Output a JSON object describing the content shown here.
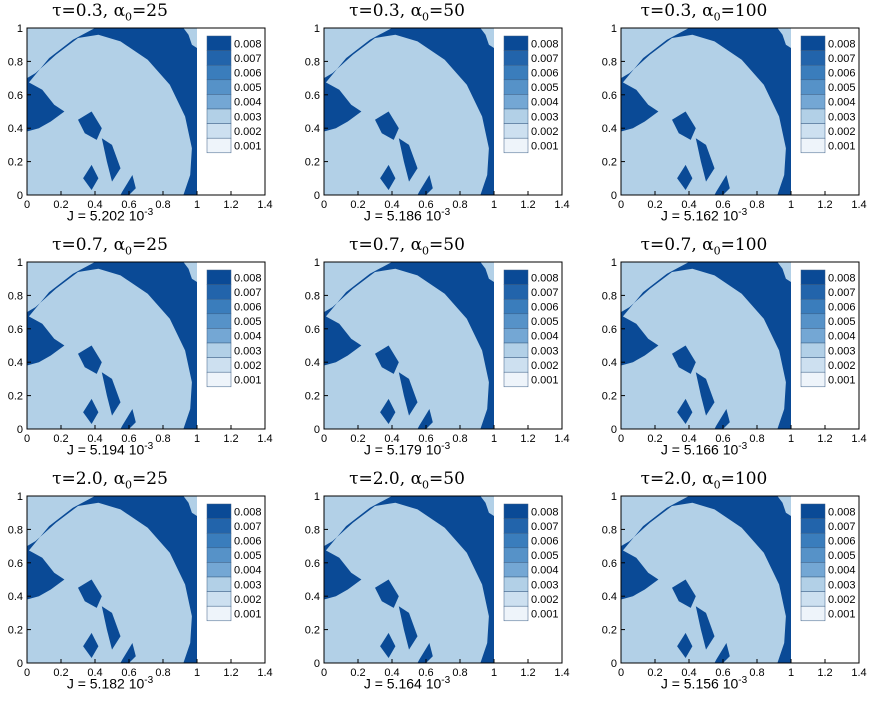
{
  "colors": {
    "level_0.008": "#0a4a96",
    "level_0.003": "#b2d0e7",
    "background": "#ffffff",
    "legend_fills": [
      "#0a4a96",
      "#2264ab",
      "#3a7dbc",
      "#5692c8",
      "#74a7d4",
      "#b2d0e7",
      "#cde0f0",
      "#eef4fa"
    ]
  },
  "chart_data": [
    {
      "type": "heatmap",
      "title": {
        "tau": "τ=0.3",
        "alpha": "α",
        "alpha_sub": "0",
        "alpha_val": "=25"
      },
      "xlabel": {
        "text": "J = 5.202 10",
        "exp": "-3"
      },
      "xlim": [
        0,
        1.4
      ],
      "ylim": [
        0,
        1
      ],
      "xticks": [
        "0",
        "0.2",
        "0.4",
        "0.6",
        "0.8",
        "1",
        "1.2",
        "1.4"
      ],
      "yticks": [
        "0",
        "0.2",
        "0.4",
        "0.6",
        "0.8",
        "1"
      ],
      "legend": [
        "0.008",
        "0.007",
        "0.006",
        "0.005",
        "0.004",
        "0.003",
        "0.002",
        "0.001"
      ]
    },
    {
      "type": "heatmap",
      "title": {
        "tau": "τ=0.3",
        "alpha": "α",
        "alpha_sub": "0",
        "alpha_val": "=50"
      },
      "xlabel": {
        "text": "J = 5.186 10",
        "exp": "-3"
      },
      "xlim": [
        0,
        1.4
      ],
      "ylim": [
        0,
        1
      ],
      "xticks": [
        "0",
        "0.2",
        "0.4",
        "0.6",
        "0.8",
        "1",
        "1.2",
        "1.4"
      ],
      "yticks": [
        "0",
        "0.2",
        "0.4",
        "0.6",
        "0.8",
        "1"
      ],
      "legend": [
        "0.008",
        "0.007",
        "0.006",
        "0.005",
        "0.004",
        "0.003",
        "0.002",
        "0.001"
      ]
    },
    {
      "type": "heatmap",
      "title": {
        "tau": "τ=0.3",
        "alpha": "α",
        "alpha_sub": "0",
        "alpha_val": "=100"
      },
      "xlabel": {
        "text": "J = 5.162 10",
        "exp": "-3"
      },
      "xlim": [
        0,
        1.4
      ],
      "ylim": [
        0,
        1
      ],
      "xticks": [
        "0",
        "0.2",
        "0.4",
        "0.6",
        "0.8",
        "1",
        "1.2",
        "1.4"
      ],
      "yticks": [
        "0",
        "0.2",
        "0.4",
        "0.6",
        "0.8",
        "1"
      ],
      "legend": [
        "0.008",
        "0.007",
        "0.006",
        "0.005",
        "0.004",
        "0.003",
        "0.002",
        "0.001"
      ]
    },
    {
      "type": "heatmap",
      "title": {
        "tau": "τ=0.7",
        "alpha": "α",
        "alpha_sub": "0",
        "alpha_val": "=25"
      },
      "xlabel": {
        "text": "J = 5.194 10",
        "exp": "-3"
      },
      "xlim": [
        0,
        1.4
      ],
      "ylim": [
        0,
        1
      ],
      "xticks": [
        "0",
        "0.2",
        "0.4",
        "0.6",
        "0.8",
        "1",
        "1.2",
        "1.4"
      ],
      "yticks": [
        "0",
        "0.2",
        "0.4",
        "0.6",
        "0.8",
        "1"
      ],
      "legend": [
        "0.008",
        "0.007",
        "0.006",
        "0.005",
        "0.004",
        "0.003",
        "0.002",
        "0.001"
      ]
    },
    {
      "type": "heatmap",
      "title": {
        "tau": "τ=0.7",
        "alpha": "α",
        "alpha_sub": "0",
        "alpha_val": "=50"
      },
      "xlabel": {
        "text": "J = 5.179 10",
        "exp": "-3"
      },
      "xlim": [
        0,
        1.4
      ],
      "ylim": [
        0,
        1
      ],
      "xticks": [
        "0",
        "0.2",
        "0.4",
        "0.6",
        "0.8",
        "1",
        "1.2",
        "1.4"
      ],
      "yticks": [
        "0",
        "0.2",
        "0.4",
        "0.6",
        "0.8",
        "1"
      ],
      "legend": [
        "0.008",
        "0.007",
        "0.006",
        "0.005",
        "0.004",
        "0.003",
        "0.002",
        "0.001"
      ]
    },
    {
      "type": "heatmap",
      "title": {
        "tau": "τ=0.7",
        "alpha": "α",
        "alpha_sub": "0",
        "alpha_val": "=100"
      },
      "xlabel": {
        "text": "J = 5.166 10",
        "exp": "-3"
      },
      "xlim": [
        0,
        1.4
      ],
      "ylim": [
        0,
        1
      ],
      "xticks": [
        "0",
        "0.2",
        "0.4",
        "0.6",
        "0.8",
        "1",
        "1.2",
        "1.4"
      ],
      "yticks": [
        "0",
        "0.2",
        "0.4",
        "0.6",
        "0.8",
        "1"
      ],
      "legend": [
        "0.008",
        "0.007",
        "0.006",
        "0.005",
        "0.004",
        "0.003",
        "0.002",
        "0.001"
      ]
    },
    {
      "type": "heatmap",
      "title": {
        "tau": "τ=2.0",
        "alpha": "α",
        "alpha_sub": "0",
        "alpha_val": "=25"
      },
      "xlabel": {
        "text": "J = 5.182 10",
        "exp": "-3"
      },
      "xlim": [
        0,
        1.4
      ],
      "ylim": [
        0,
        1
      ],
      "xticks": [
        "0",
        "0.2",
        "0.4",
        "0.6",
        "0.8",
        "1",
        "1.2",
        "1.4"
      ],
      "yticks": [
        "0",
        "0.2",
        "0.4",
        "0.6",
        "0.8",
        "1"
      ],
      "legend": [
        "0.008",
        "0.007",
        "0.006",
        "0.005",
        "0.004",
        "0.003",
        "0.002",
        "0.001"
      ]
    },
    {
      "type": "heatmap",
      "title": {
        "tau": "τ=2.0",
        "alpha": "α",
        "alpha_sub": "0",
        "alpha_val": "=50"
      },
      "xlabel": {
        "text": "J = 5.164 10",
        "exp": "-3"
      },
      "xlim": [
        0,
        1.4
      ],
      "ylim": [
        0,
        1
      ],
      "xticks": [
        "0",
        "0.2",
        "0.4",
        "0.6",
        "0.8",
        "1",
        "1.2",
        "1.4"
      ],
      "yticks": [
        "0",
        "0.2",
        "0.4",
        "0.6",
        "0.8",
        "1"
      ],
      "legend": [
        "0.008",
        "0.007",
        "0.006",
        "0.005",
        "0.004",
        "0.003",
        "0.002",
        "0.001"
      ]
    },
    {
      "type": "heatmap",
      "title": {
        "tau": "τ=2.0",
        "alpha": "α",
        "alpha_sub": "0",
        "alpha_val": "=100"
      },
      "xlabel": {
        "text": "J = 5.156 10",
        "exp": "-3"
      },
      "xlim": [
        0,
        1.4
      ],
      "ylim": [
        0,
        1
      ],
      "xticks": [
        "0",
        "0.2",
        "0.4",
        "0.6",
        "0.8",
        "1",
        "1.2",
        "1.4"
      ],
      "yticks": [
        "0",
        "0.2",
        "0.4",
        "0.6",
        "0.8",
        "1"
      ],
      "legend": [
        "0.008",
        "0.007",
        "0.006",
        "0.005",
        "0.004",
        "0.003",
        "0.002",
        "0.001"
      ]
    }
  ]
}
